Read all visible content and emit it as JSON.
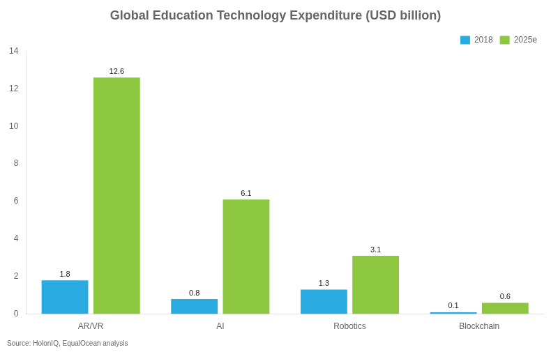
{
  "chart_data": {
    "type": "bar",
    "title": "Global Education Technology Expenditure (USD billion)",
    "categories": [
      "AR/VR",
      "AI",
      "Robotics",
      "Blockchain"
    ],
    "series": [
      {
        "name": "2018",
        "color": "#29ABE2",
        "values": [
          1.8,
          0.8,
          1.3,
          0.1
        ]
      },
      {
        "name": "2025e",
        "color": "#8DC63F",
        "values": [
          12.6,
          6.1,
          3.1,
          0.6
        ]
      }
    ],
    "ylim": [
      0,
      14
    ],
    "yticks": [
      0,
      2,
      4,
      6,
      8,
      10,
      12,
      14
    ],
    "grid": false,
    "legend": "upper right",
    "data_labels": true,
    "annotations": [
      "Source: HolonIQ, EqualOcean analysis"
    ]
  }
}
